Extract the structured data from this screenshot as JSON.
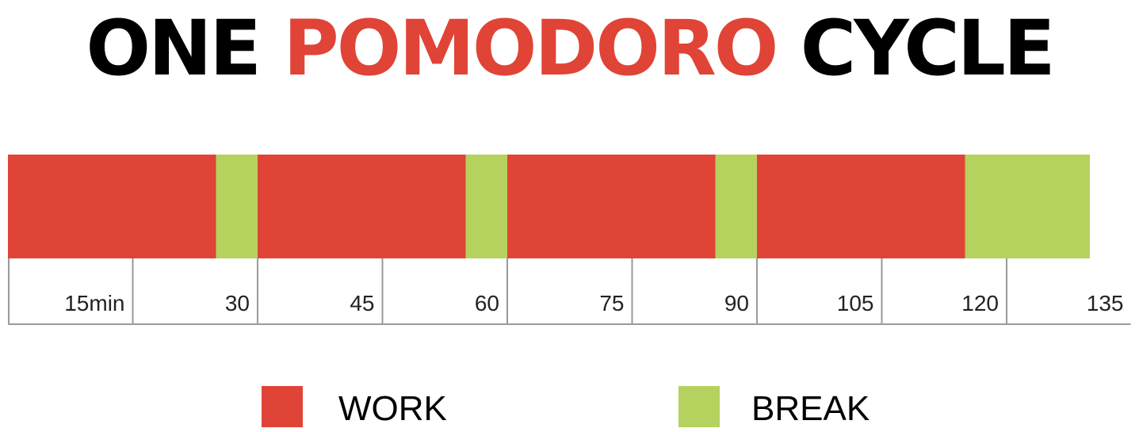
{
  "title": {
    "part1": "ONE",
    "part2": "POMODORO",
    "part3": "CYCLE",
    "accent_color": "#e04436"
  },
  "colors": {
    "work": "#e04436",
    "break": "#b5d25f",
    "axis": "#9a9a9a",
    "text": "#000000"
  },
  "chart_data": {
    "type": "bar",
    "orientation": "horizontal-timeline",
    "xlim": [
      0,
      135
    ],
    "unit": "min",
    "segments": [
      {
        "phase": "work",
        "start": 0,
        "end": 25
      },
      {
        "phase": "break",
        "start": 25,
        "end": 30
      },
      {
        "phase": "work",
        "start": 30,
        "end": 55
      },
      {
        "phase": "break",
        "start": 55,
        "end": 60
      },
      {
        "phase": "work",
        "start": 60,
        "end": 85
      },
      {
        "phase": "break",
        "start": 85,
        "end": 90
      },
      {
        "phase": "work",
        "start": 90,
        "end": 115
      },
      {
        "phase": "break",
        "start": 115,
        "end": 130
      }
    ],
    "ticks": [
      15,
      30,
      45,
      60,
      75,
      90,
      105,
      120,
      135
    ],
    "tick_labels": [
      "15min",
      "30",
      "45",
      "60",
      "75",
      "90",
      "105",
      "120",
      "135"
    ],
    "legend": [
      {
        "key": "work",
        "label": "WORK"
      },
      {
        "key": "break",
        "label": "BREAK"
      }
    ],
    "legend_position": "bottom"
  }
}
